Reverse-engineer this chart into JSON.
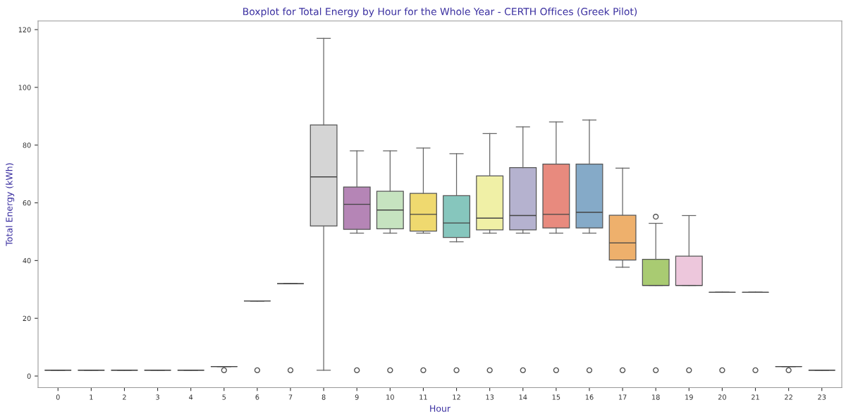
{
  "chart_data": {
    "type": "box",
    "title": "Boxplot for Total Energy by Hour for the Whole Year - CERTH Offices (Greek Pilot)",
    "xlabel": "Hour",
    "ylabel": "Total Energy (kWh)",
    "categories": [
      "0",
      "1",
      "2",
      "3",
      "4",
      "5",
      "6",
      "7",
      "8",
      "9",
      "10",
      "11",
      "12",
      "13",
      "14",
      "15",
      "16",
      "17",
      "18",
      "19",
      "20",
      "21",
      "22",
      "23"
    ],
    "boxes": [
      {
        "low": 2,
        "q1": 2,
        "median": 2,
        "q3": 2,
        "high": 2
      },
      {
        "low": 2,
        "q1": 2,
        "median": 2,
        "q3": 2,
        "high": 2
      },
      {
        "low": 2,
        "q1": 2,
        "median": 2,
        "q3": 2,
        "high": 2
      },
      {
        "low": 2,
        "q1": 2,
        "median": 2,
        "q3": 2,
        "high": 2
      },
      {
        "low": 2,
        "q1": 2,
        "median": 2,
        "q3": 2,
        "high": 2
      },
      {
        "low": 3.3,
        "q1": 3.3,
        "median": 3.3,
        "q3": 3.3,
        "high": 3.3,
        "outliers": [
          2
        ]
      },
      {
        "low": 26,
        "q1": 26,
        "median": 26,
        "q3": 26,
        "high": 26,
        "outliers": [
          2
        ]
      },
      {
        "low": 32,
        "q1": 32,
        "median": 32,
        "q3": 32,
        "high": 32,
        "outliers": [
          2
        ]
      },
      {
        "low": 2,
        "q1": 52,
        "median": 69,
        "q3": 87,
        "high": 117
      },
      {
        "low": 49.5,
        "q1": 50.8,
        "median": 59.5,
        "q3": 65.5,
        "high": 78,
        "outliers": [
          2
        ]
      },
      {
        "low": 49.5,
        "q1": 51,
        "median": 57.5,
        "q3": 64,
        "high": 78,
        "outliers": [
          2
        ]
      },
      {
        "low": 49.5,
        "q1": 50.2,
        "median": 56,
        "q3": 63.3,
        "high": 79,
        "outliers": [
          2
        ]
      },
      {
        "low": 46.5,
        "q1": 48,
        "median": 53,
        "q3": 62.5,
        "high": 77,
        "outliers": [
          2
        ]
      },
      {
        "low": 49.5,
        "q1": 50.6,
        "median": 54.7,
        "q3": 69.3,
        "high": 84,
        "outliers": [
          2
        ]
      },
      {
        "low": 49.5,
        "q1": 50.6,
        "median": 55.6,
        "q3": 72.2,
        "high": 86.3,
        "outliers": [
          2
        ]
      },
      {
        "low": 49.5,
        "q1": 51.3,
        "median": 56,
        "q3": 73.4,
        "high": 88,
        "outliers": [
          2
        ]
      },
      {
        "low": 49.5,
        "q1": 51.3,
        "median": 56.7,
        "q3": 73.4,
        "high": 88.7,
        "outliers": [
          2
        ]
      },
      {
        "low": 37.7,
        "q1": 40.2,
        "median": 46.1,
        "q3": 55.7,
        "high": 72,
        "outliers": [
          2
        ]
      },
      {
        "low": 31.4,
        "q1": 31.4,
        "median": 31.4,
        "q3": 40.4,
        "high": 52.9,
        "outliers": [
          2,
          55.2
        ]
      },
      {
        "low": 31.4,
        "q1": 31.4,
        "median": 31.4,
        "q3": 41.5,
        "high": 55.6,
        "outliers": [
          2
        ]
      },
      {
        "low": 29,
        "q1": 29,
        "median": 29,
        "q3": 29,
        "high": 29,
        "outliers": [
          2
        ]
      },
      {
        "low": 29,
        "q1": 29,
        "median": 29,
        "q3": 29,
        "high": 29,
        "outliers": [
          2
        ]
      },
      {
        "low": 3.3,
        "q1": 3.3,
        "median": 3.3,
        "q3": 3.3,
        "high": 3.3,
        "outliers": [
          2
        ]
      },
      {
        "low": 2,
        "q1": 2,
        "median": 2,
        "q3": 2,
        "high": 2
      }
    ],
    "colors": [
      "#555555",
      "#555555",
      "#555555",
      "#555555",
      "#555555",
      "#555555",
      "#555555",
      "#555555",
      "#d5d5d5",
      "#b585b6",
      "#c6e3c0",
      "#efd96f",
      "#86c6bd",
      "#f0f0a6",
      "#b5b2cf",
      "#e88a7e",
      "#85aac8",
      "#eeb06c",
      "#a9cb72",
      "#edc7dc",
      "#555555",
      "#555555",
      "#555555",
      "#555555"
    ],
    "ylim": [
      -4,
      123
    ],
    "yticks": [
      0,
      20,
      40,
      60,
      80,
      100,
      120
    ],
    "grid": false,
    "marker": "circle"
  }
}
